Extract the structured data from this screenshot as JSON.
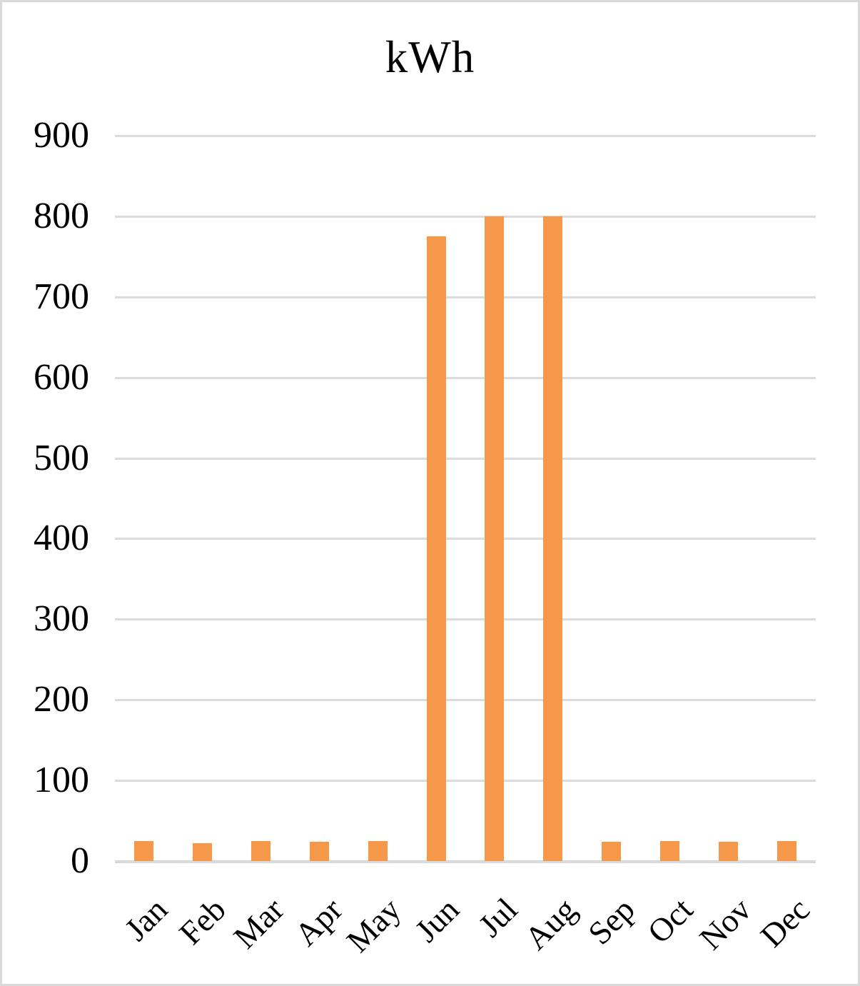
{
  "chart_data": {
    "type": "bar",
    "title": "kWh",
    "categories": [
      "Jan",
      "Feb",
      "Mar",
      "Apr",
      "May",
      "Jun",
      "Jul",
      "Aug",
      "Sep",
      "Oct",
      "Nov",
      "Dec"
    ],
    "values": [
      25,
      22,
      25,
      24,
      25,
      775,
      800,
      800,
      24,
      25,
      24,
      25
    ],
    "xlabel": "",
    "ylabel": "",
    "ylim": [
      0,
      900
    ],
    "ytick_interval": 100,
    "ytick_labels": [
      "0",
      "100",
      "200",
      "300",
      "400",
      "500",
      "600",
      "700",
      "800",
      "900"
    ],
    "grid": true,
    "legend": false,
    "bar_color": "#F6984A",
    "gridline_color": "#DCDCDC",
    "axis_line_color": "#D9D9D9",
    "text_color": "#000000",
    "background_color": "#FFFFFF",
    "frame_border_color": "#D9D9D9"
  }
}
